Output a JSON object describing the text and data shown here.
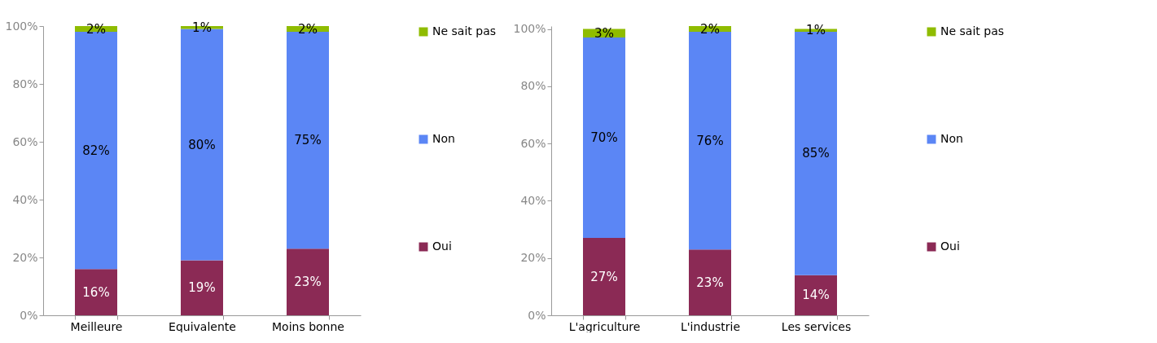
{
  "chart_data": [
    {
      "type": "bar",
      "stacked": true,
      "categories": [
        "Meilleure",
        "Equivalente",
        "Moins bonne"
      ],
      "ylim": [
        0,
        100
      ],
      "yticks": [
        {
          "value": 0,
          "label": "0%"
        },
        {
          "value": 20,
          "label": "20%"
        },
        {
          "value": 40,
          "label": "40%"
        },
        {
          "value": 60,
          "label": "60%"
        },
        {
          "value": 80,
          "label": "80%"
        },
        {
          "value": 100,
          "label": "100%"
        }
      ],
      "series": [
        {
          "name": "Oui",
          "color": "#8b2a55",
          "values": [
            16,
            19,
            23
          ],
          "value_labels": [
            "16%",
            "19%",
            "23%"
          ]
        },
        {
          "name": "Non",
          "color": "#5b86f5",
          "values": [
            82,
            80,
            75
          ],
          "value_labels": [
            "82%",
            "80%",
            "75%"
          ]
        },
        {
          "name": "Ne sait pas",
          "color": "#8fbc00",
          "values": [
            2,
            1,
            2
          ],
          "value_labels": [
            "2%",
            "1%",
            "2%"
          ]
        }
      ],
      "legend": "right",
      "grid": false
    },
    {
      "type": "bar",
      "stacked": true,
      "categories": [
        "L'agriculture",
        "L'industrie",
        "Les services"
      ],
      "ylim": [
        0,
        101
      ],
      "yticks": [
        {
          "value": 0,
          "label": "0%"
        },
        {
          "value": 20,
          "label": "20%"
        },
        {
          "value": 40,
          "label": "40%"
        },
        {
          "value": 60,
          "label": "60%"
        },
        {
          "value": 80,
          "label": "80%"
        },
        {
          "value": 100,
          "label": "100%"
        }
      ],
      "series": [
        {
          "name": "Oui",
          "color": "#8b2a55",
          "values": [
            27,
            23,
            14
          ],
          "value_labels": [
            "27%",
            "23%",
            "14%"
          ]
        },
        {
          "name": "Non",
          "color": "#5b86f5",
          "values": [
            70,
            76,
            85
          ],
          "value_labels": [
            "70%",
            "76%",
            "85%"
          ]
        },
        {
          "name": "Ne sait pas",
          "color": "#8fbc00",
          "values": [
            3,
            2,
            1
          ],
          "value_labels": [
            "3%",
            "2%",
            "1%"
          ]
        }
      ],
      "legend": "right",
      "grid": false
    }
  ]
}
